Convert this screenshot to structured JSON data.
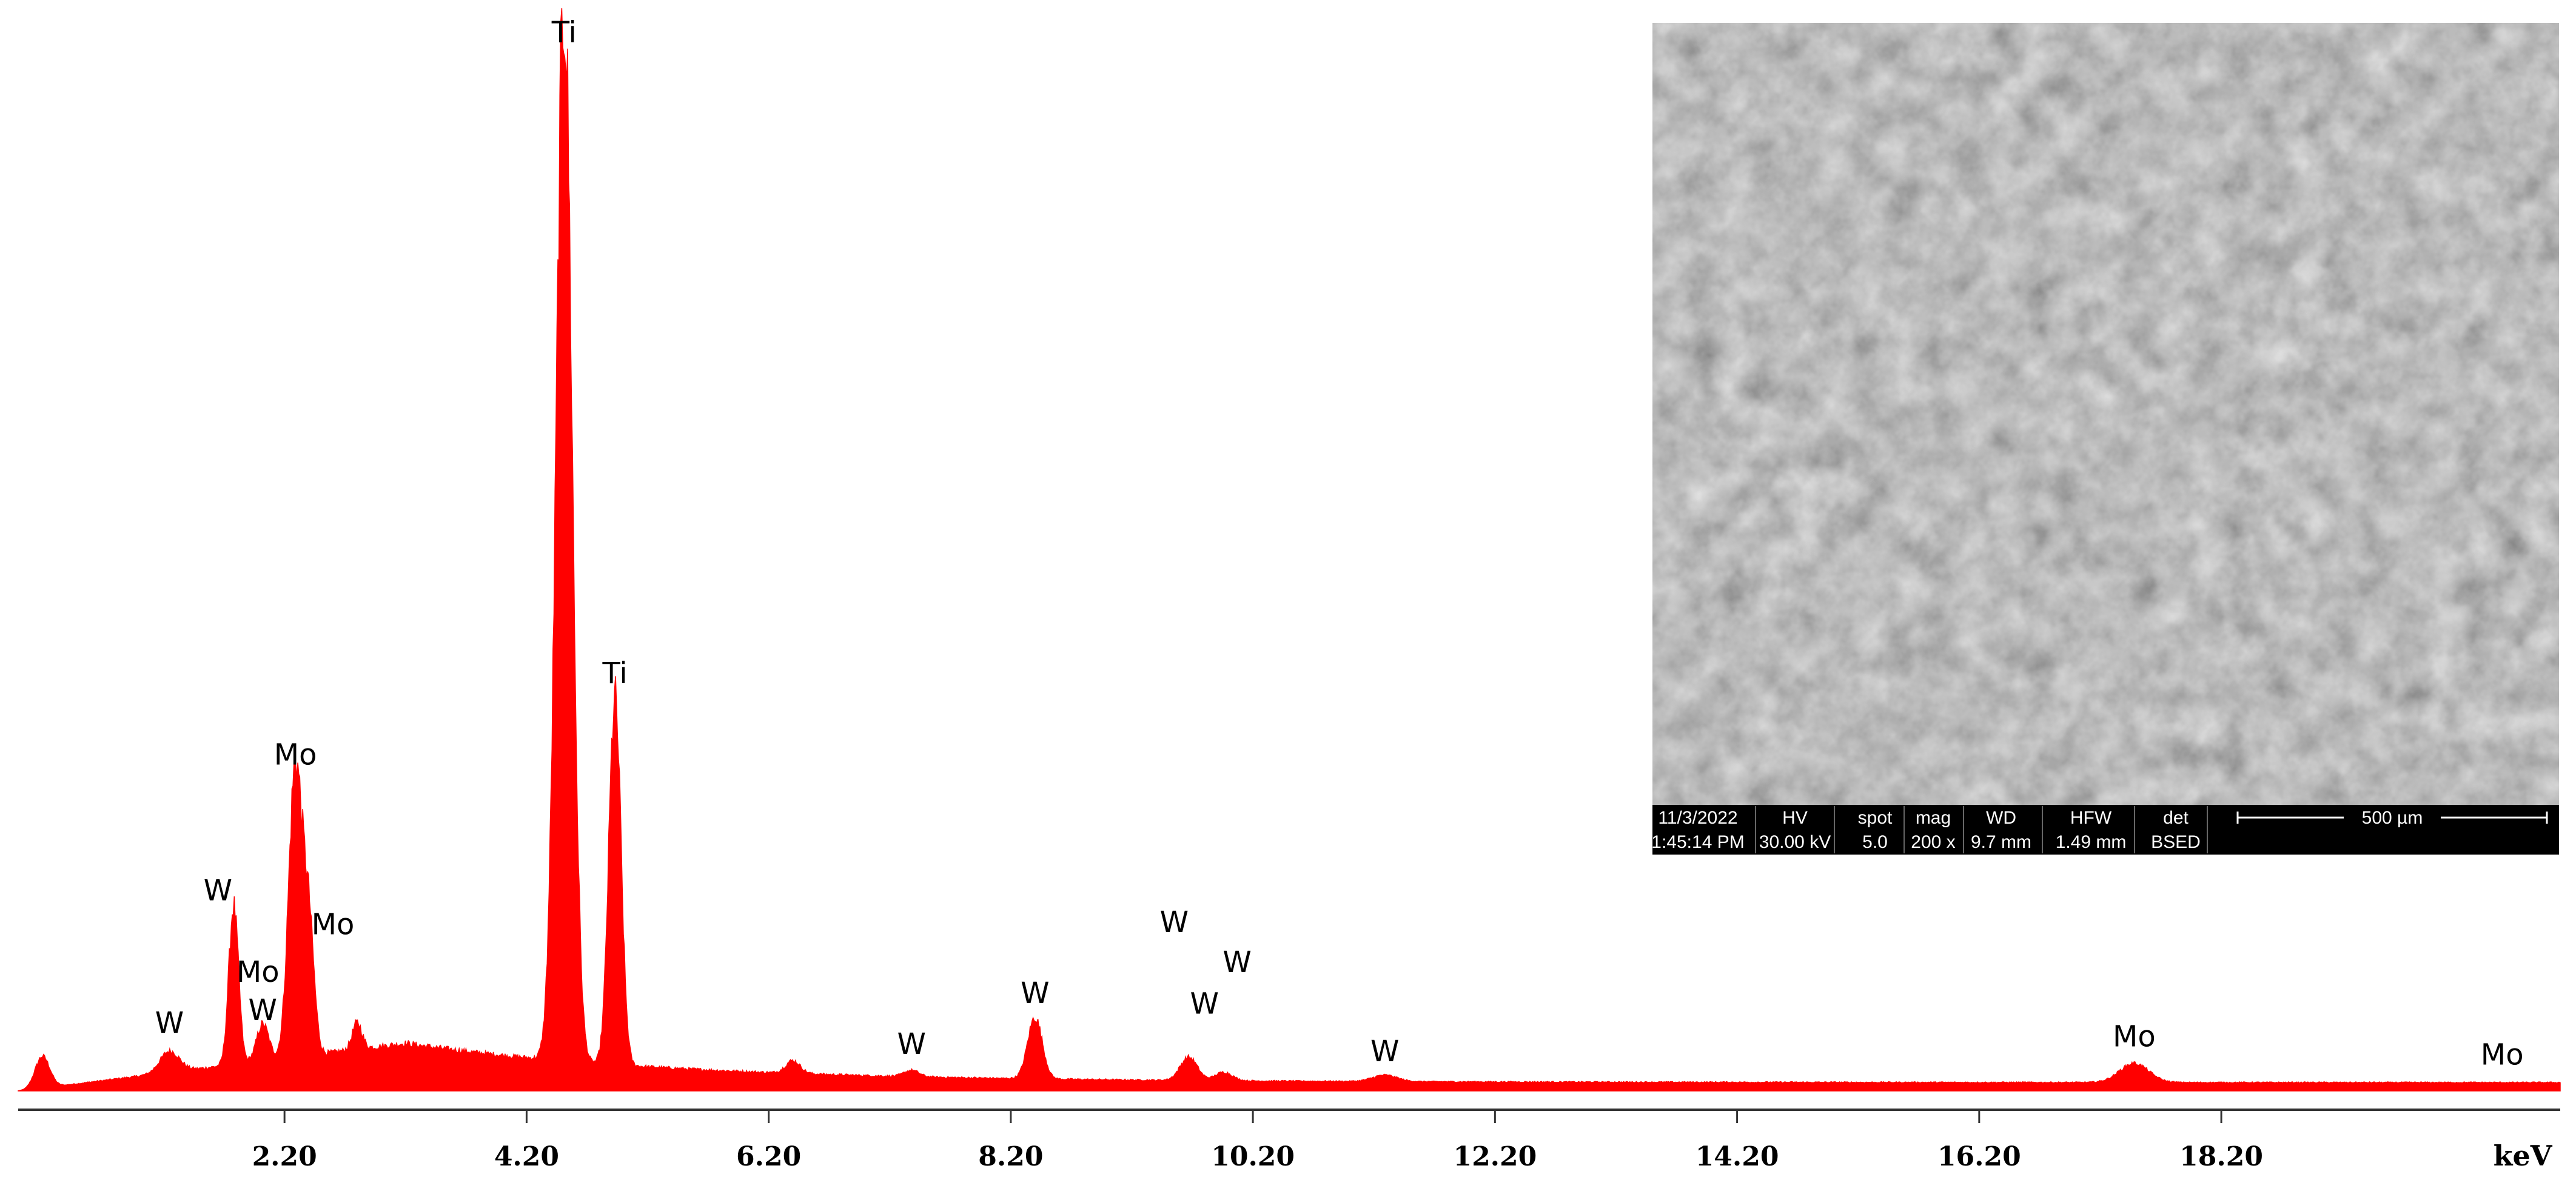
{
  "chart_data": {
    "type": "area",
    "title": "",
    "xlabel": "keV",
    "ylabel": "",
    "xlim": [
      0,
      21
    ],
    "ylim": [
      0,
      1000
    ],
    "grid": false,
    "legend": "none",
    "x_ticks": [
      "2.20",
      "4.20",
      "6.20",
      "8.20",
      "10.20",
      "12.20",
      "14.20",
      "16.20",
      "18.20"
    ],
    "x_tick_values": [
      2.2,
      4.2,
      6.2,
      8.2,
      10.2,
      12.2,
      14.2,
      16.2,
      18.2
    ],
    "series": [
      {
        "color": "#ff0000",
        "peaks": [
          {
            "x": 0.2,
            "y": 30,
            "w": 0.06
          },
          {
            "x": 1.25,
            "y": 20,
            "w": 0.08
          },
          {
            "x": 1.78,
            "y": 150,
            "w": 0.04
          },
          {
            "x": 2.02,
            "y": 35,
            "w": 0.05
          },
          {
            "x": 2.29,
            "y": 275,
            "w": 0.055
          },
          {
            "x": 2.4,
            "y": 120,
            "w": 0.045
          },
          {
            "x": 2.8,
            "y": 25,
            "w": 0.04
          },
          {
            "x": 4.51,
            "y": 1000,
            "w": 0.065
          },
          {
            "x": 4.93,
            "y": 345,
            "w": 0.05
          },
          {
            "x": 6.4,
            "y": 12,
            "w": 0.06
          },
          {
            "x": 7.38,
            "y": 6,
            "w": 0.06
          },
          {
            "x": 8.4,
            "y": 58,
            "w": 0.06
          },
          {
            "x": 9.67,
            "y": 22,
            "w": 0.07
          },
          {
            "x": 9.96,
            "y": 8,
            "w": 0.07
          },
          {
            "x": 11.29,
            "y": 6,
            "w": 0.1
          },
          {
            "x": 17.48,
            "y": 18,
            "w": 0.12
          }
        ],
        "background": {
          "start": 0,
          "rise": 45,
          "peak_at": 3.2,
          "end": 8
        }
      }
    ],
    "annotations": [
      {
        "text": "Ti",
        "x": 4.51,
        "y": 990
      },
      {
        "text": "Ti",
        "x": 4.93,
        "y": 385
      },
      {
        "text": "Mo",
        "x": 2.29,
        "y": 308
      },
      {
        "text": "Mo",
        "x": 2.6,
        "y": 148
      },
      {
        "text": "W",
        "x": 1.65,
        "y": 180
      },
      {
        "text": "Mo",
        "x": 1.98,
        "y": 103
      },
      {
        "text": "W",
        "x": 2.02,
        "y": 67
      },
      {
        "text": "W",
        "x": 1.25,
        "y": 55
      },
      {
        "text": "W",
        "x": 7.38,
        "y": 35
      },
      {
        "text": "W",
        "x": 8.4,
        "y": 83
      },
      {
        "text": "W",
        "x": 9.55,
        "y": 150
      },
      {
        "text": "W",
        "x": 10.07,
        "y": 112
      },
      {
        "text": "W",
        "x": 9.8,
        "y": 73
      },
      {
        "text": "W",
        "x": 11.29,
        "y": 28
      },
      {
        "text": "Mo",
        "x": 17.48,
        "y": 42
      },
      {
        "text": "Mo",
        "x": 20.52,
        "y": 25
      }
    ]
  },
  "sem_inset": {
    "info_headers": [
      "11/3/2022",
      "HV",
      "spot",
      "mag",
      "WD",
      "HFW",
      "det"
    ],
    "info_values": [
      "1:45:14 PM",
      "30.00 kV",
      "5.0",
      "200 x",
      "9.7 mm",
      "1.49 mm",
      "BSED"
    ],
    "scale_bar": "500 µm"
  }
}
